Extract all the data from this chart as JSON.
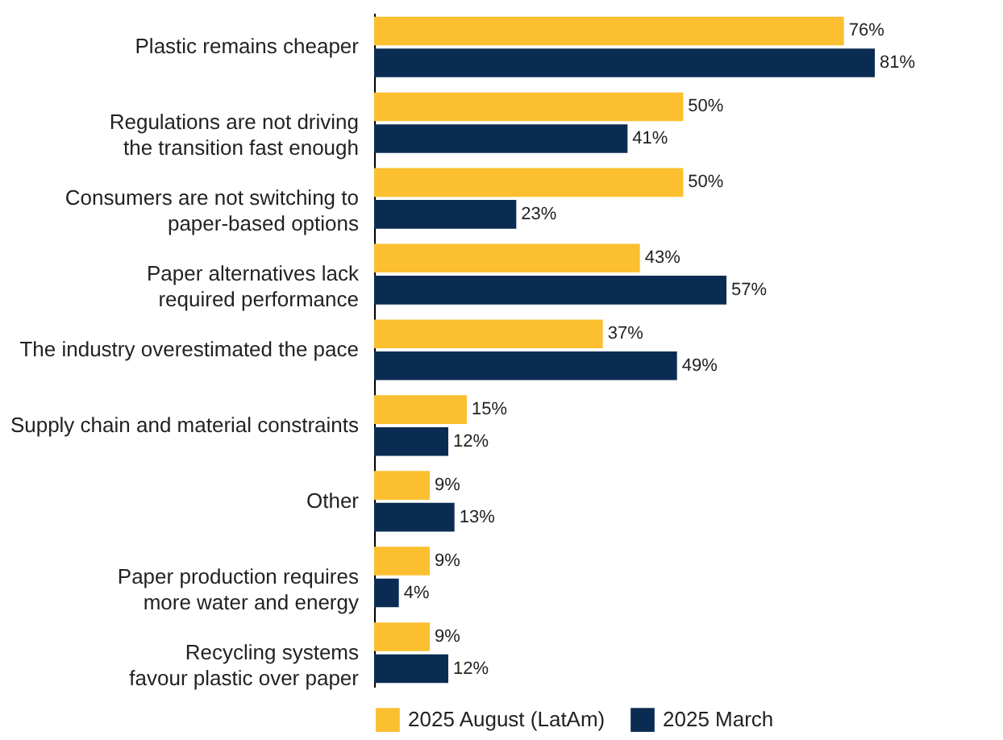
{
  "chart_data": {
    "type": "bar",
    "orientation": "horizontal",
    "legend": "bottom",
    "categories": [
      "Plastic remains cheaper",
      "Regulations are not driving\nthe transition fast enough",
      "Consumers are not switching to\npaper-based options",
      "Paper alternatives lack\nrequired performance",
      "The industry overestimated the pace",
      "Supply chain and material constraints",
      "Other",
      "Paper production requires\nmore water and energy",
      "Recycling systems\nfavour plastic over paper"
    ],
    "series": [
      {
        "name": "2025 August (LatAm)",
        "color": "#fbbf2f",
        "values": [
          76,
          50,
          50,
          43,
          37,
          15,
          9,
          9,
          9
        ],
        "value_labels": [
          "76%",
          "50%",
          "50%",
          "43%",
          "37%",
          "15%",
          "9%",
          "9%",
          "9%"
        ]
      },
      {
        "name": "2025 March",
        "color": "#0b2c52",
        "values": [
          81,
          41,
          23,
          57,
          49,
          12,
          13,
          4,
          12
        ],
        "value_labels": [
          "81%",
          "41%",
          "23%",
          "57%",
          "49%",
          "12%",
          "13%",
          "4%",
          "12%"
        ]
      }
    ]
  }
}
